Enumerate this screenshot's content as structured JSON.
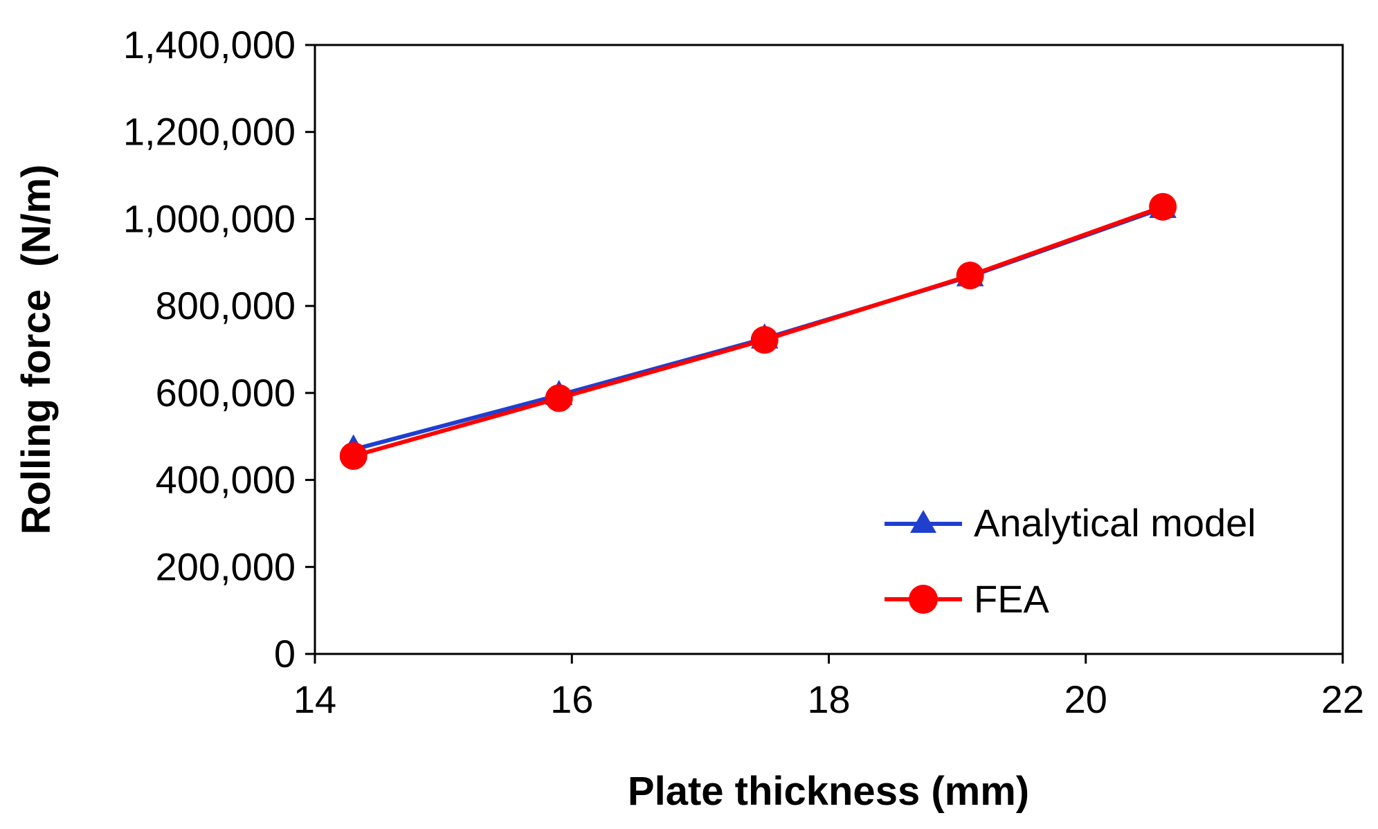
{
  "chart_data": {
    "type": "line",
    "title": "",
    "xlabel": "Plate thickness (mm)",
    "ylabel": "Rolling force  (N/m)",
    "xlim": [
      14,
      22
    ],
    "ylim": [
      0,
      1400000
    ],
    "x_ticks": [
      14,
      16,
      18,
      20,
      22
    ],
    "x_tick_labels": [
      "14",
      "16",
      "18",
      "20",
      "22"
    ],
    "y_ticks": [
      0,
      200000,
      400000,
      600000,
      800000,
      1000000,
      1200000,
      1400000
    ],
    "y_tick_labels": [
      "0",
      "200,000",
      "400,000",
      "600,000",
      "800,000",
      "1,000,000",
      "1,200,000",
      "1,400,000"
    ],
    "grid": false,
    "legend_position": "bottom-right",
    "series": [
      {
        "name": "Analytical model",
        "marker": "triangle",
        "color": "#1f3fcf",
        "x": [
          14.3,
          15.9,
          17.5,
          19.1,
          20.6
        ],
        "y": [
          470000,
          595000,
          725000,
          868000,
          1025000
        ]
      },
      {
        "name": "FEA",
        "marker": "circle",
        "color": "#ff0000",
        "x": [
          14.3,
          15.9,
          17.5,
          19.1,
          20.6
        ],
        "y": [
          455000,
          588000,
          722000,
          870000,
          1028000
        ]
      }
    ]
  }
}
